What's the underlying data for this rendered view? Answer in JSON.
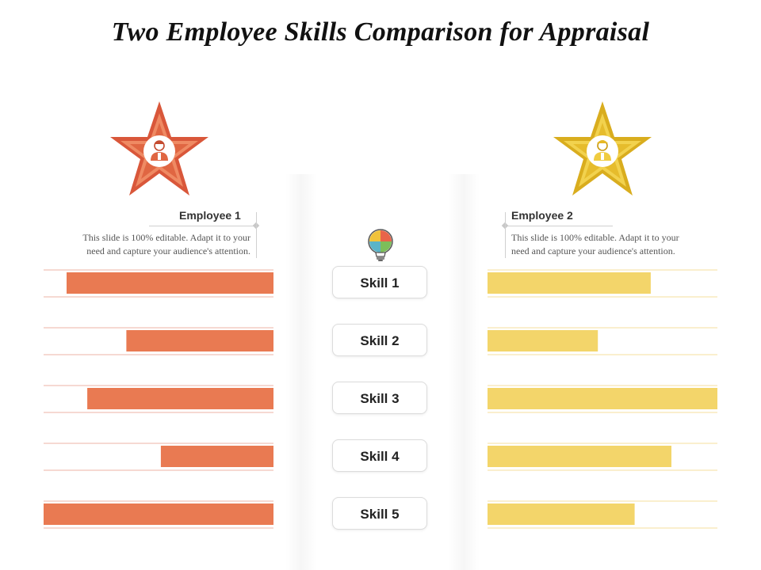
{
  "title": "Two Employee Skills Comparison for Appraisal",
  "employees": [
    {
      "name": "Employee 1",
      "description_line1": "This slide is 100% editable. Adapt it to your",
      "description_line2": "need and capture your audience's attention.",
      "color": "#E97A52",
      "star_color": "#D9573A"
    },
    {
      "name": "Employee 2",
      "description_line1": "This slide is 100% editable. Adapt it to your",
      "description_line2": "need and capture your audience's attention.",
      "color": "#F3D56A",
      "star_color": "#E6B824"
    }
  ],
  "skills": [
    "Skill 1",
    "Skill 2",
    "Skill 3",
    "Skill 4",
    "Skill 5"
  ],
  "icons": {
    "star": "star-icon",
    "person": "person-icon",
    "bulb": "puzzle-lightbulb-icon"
  },
  "chart_data": {
    "type": "bar",
    "orientation": "horizontal-butterfly",
    "title": "Two Employee Skills Comparison for Appraisal",
    "categories": [
      "Skill 1",
      "Skill 2",
      "Skill 3",
      "Skill 4",
      "Skill 5"
    ],
    "series": [
      {
        "name": "Employee 1",
        "values": [
          90,
          64,
          81,
          49,
          100
        ],
        "color": "#E97A52"
      },
      {
        "name": "Employee 2",
        "values": [
          71,
          48,
          100,
          80,
          64
        ],
        "color": "#F3D56A"
      }
    ],
    "ylim": [
      0,
      100
    ]
  }
}
